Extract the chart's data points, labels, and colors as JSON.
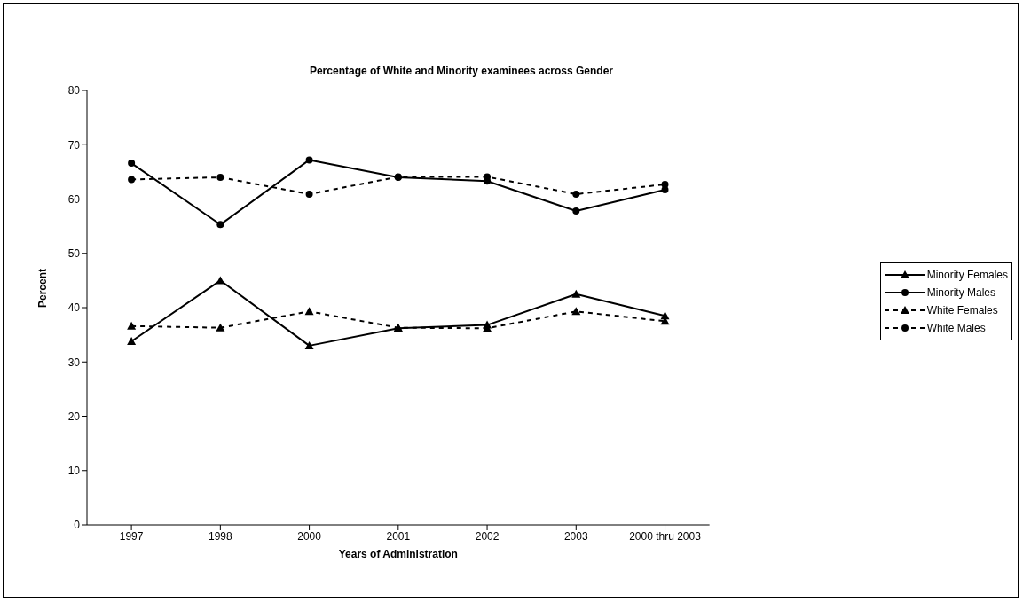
{
  "chart_data": {
    "type": "line",
    "title": "Percentage of White and Minority examinees across Gender",
    "xlabel": "Years of Administration",
    "ylabel": "Percent",
    "categories": [
      "1997",
      "1998",
      "2000",
      "2001",
      "2002",
      "2003",
      "2000 thru 2003"
    ],
    "ylim": [
      0,
      80
    ],
    "yticks": [
      0,
      10,
      20,
      30,
      40,
      50,
      60,
      70,
      80
    ],
    "grid": false,
    "legend": "right",
    "series": [
      {
        "name": "Minority Females",
        "color": "#000000",
        "marker": "triangle",
        "line_style": "solid",
        "values": [
          33.8,
          45,
          33,
          36.2,
          36.8,
          42.5,
          38.5
        ]
      },
      {
        "name": "Minority Males",
        "color": "#000000",
        "marker": "circle",
        "line_style": "solid",
        "values": [
          66.6,
          55.3,
          67.2,
          64,
          63.3,
          57.8,
          61.7
        ]
      },
      {
        "name": "White Females",
        "color": "#000000",
        "marker": "triangle",
        "line_style": "dashed",
        "values": [
          36.6,
          36.3,
          39.3,
          36.3,
          36.2,
          39.3,
          37.5
        ]
      },
      {
        "name": "White Males",
        "color": "#000000",
        "marker": "circle",
        "line_style": "dashed",
        "values": [
          63.6,
          64,
          60.9,
          64.1,
          64.1,
          60.9,
          62.7
        ]
      }
    ]
  }
}
